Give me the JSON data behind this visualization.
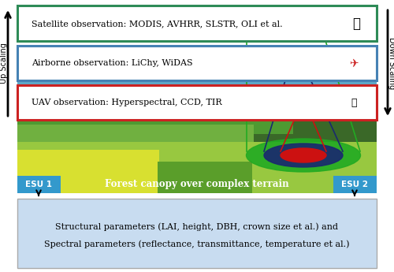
{
  "satellite_text": "Satellite observation: MODIS, AVHRR, SLSTR, OLI et al.",
  "airborne_text": "Airborne observation: LiChy, WiDAS",
  "uav_text": "UAV observation: Hyperspectral, CCD, TIR",
  "forest_text": "Forest canopy over complex terrain",
  "esu1_text": "ESU 1",
  "esu2_text": "ESU 2",
  "param_line1": "Structural parameters (LAI, height, DBH, crown size et al.) and",
  "param_line2": "Spectral parameters (reflectance, transmittance, temperature et al.)",
  "upscaling_text": "Up Scaling",
  "downscaling_text": "Down Scaling",
  "satellite_box_color": "#2e8b57",
  "airborne_box_color": "#4682b4",
  "uav_box_color": "#cc2222",
  "param_box_color": "#c8dcf0",
  "esu_box_color": "#3399cc",
  "forest_text_color": "white",
  "bg_color": "white",
  "fig_width": 5.0,
  "fig_height": 3.45,
  "dpi": 100,
  "sky_color": "#5fa8c8",
  "hill1_color": "#3a7a28",
  "hill2_color": "#4e9a32",
  "hill3_color": "#70b040",
  "hill4_color": "#98c840",
  "yellow_color": "#d8e030",
  "forest_bg_color": "#3a6828",
  "ell_green": "#22aa22",
  "ell_darkblue": "#1a2a6e",
  "ell_red": "#cc1111",
  "line_green": "#22aa22",
  "line_darkblue": "#1a2a6e",
  "line_red": "#cc1111"
}
